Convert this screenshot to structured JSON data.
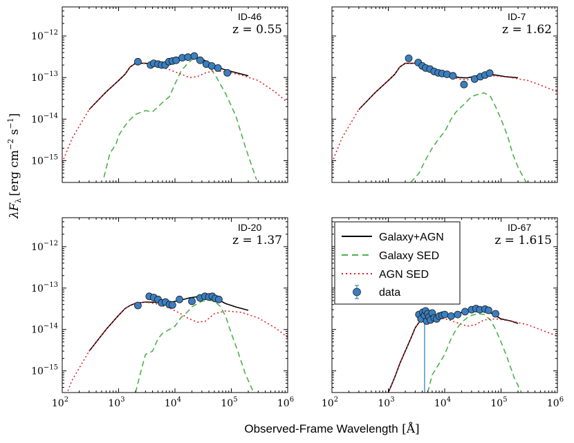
{
  "figure": {
    "xlabel_text": "Observed-Frame Wavelength",
    "xlabel_unit": "[Å]",
    "ylabel_text": "λF",
    "ylabel_sub": "λ",
    "ylabel_unit": "[erg cm",
    "ylabel_exp1": "−2",
    "ylabel_s": " s",
    "ylabel_exp2": "−1",
    "ylabel_close": "]",
    "x_tick_labels": [
      "10",
      "10",
      "10",
      "10",
      "10"
    ],
    "x_tick_exps": [
      "2",
      "3",
      "4",
      "5",
      "6"
    ],
    "y_tick_labels": [
      "10",
      "10",
      "10",
      "10"
    ],
    "y_tick_exps": [
      "−12",
      "−13",
      "−14",
      "−15"
    ]
  },
  "legend": {
    "position": "top-left of lower-right panel",
    "entries": [
      {
        "label": "Galaxy+AGN",
        "style": "solid",
        "color": "#000000"
      },
      {
        "label": "Galaxy SED",
        "style": "dashed",
        "color": "#4daf4a"
      },
      {
        "label": "AGN SED",
        "style": "dotted",
        "color": "#e41a1c"
      },
      {
        "label": "data",
        "style": "marker",
        "color": "#3a7fc1"
      }
    ]
  },
  "chart_data": [
    {
      "type": "line",
      "id": "ID-46",
      "z_label": "z = 0.55",
      "xscale": "log",
      "yscale": "log",
      "xlim": [
        100,
        1000000
      ],
      "ylim": [
        3e-16,
        5e-12
      ],
      "series": [
        {
          "name": "Galaxy+AGN",
          "x": [
            300,
            600,
            1000,
            1300,
            1600,
            2000,
            3000,
            5000,
            8000,
            12000,
            17000,
            22000,
            30000,
            45000,
            70000,
            100000,
            200000
          ],
          "y": [
            1.7e-14,
            4.5e-14,
            8.5e-14,
            1.2e-13,
            1.8e-13,
            2.2e-13,
            2.2e-13,
            2e-13,
            2.3e-13,
            2.6e-13,
            2.9e-13,
            3e-13,
            2.8e-13,
            2.1e-13,
            1.6e-13,
            1.4e-13,
            1.1e-13
          ]
        },
        {
          "name": "Galaxy SED",
          "x": [
            550,
            700,
            900,
            1000,
            1200,
            1500,
            2000,
            3000,
            4000,
            6000,
            8000,
            10000,
            13000,
            16000,
            20000,
            25000,
            30000,
            40000,
            55000,
            80000,
            120000,
            180000,
            280000
          ],
          "y": [
            4e-16,
            1.5e-15,
            2.5e-15,
            4e-15,
            6e-15,
            9e-15,
            1.3e-14,
            1.6e-14,
            1.5e-14,
            2.5e-14,
            3.5e-14,
            7e-14,
            1.5e-13,
            2e-13,
            2.7e-13,
            2.9e-13,
            2.7e-13,
            1.9e-13,
            1e-13,
            4e-14,
            1.2e-14,
            2e-15,
            3.5e-16
          ]
        },
        {
          "name": "AGN SED",
          "x": [
            100,
            150,
            300,
            600,
            1000,
            1300,
            1600,
            2000,
            3000,
            5000,
            8000,
            12000,
            18000,
            25000,
            35000,
            50000,
            80000,
            150000,
            300000,
            600000,
            1000000
          ],
          "y": [
            9e-16,
            3.5e-15,
            1.7e-14,
            4.5e-14,
            8.5e-14,
            1.2e-13,
            1.8e-13,
            2.2e-13,
            2.2e-13,
            1.9e-13,
            1.55e-13,
            1.25e-13,
            1e-13,
            1.05e-13,
            1.3e-13,
            1.45e-13,
            1.38e-13,
            1.15e-13,
            8.5e-14,
            4.5e-14,
            2.5e-14
          ]
        },
        {
          "name": "data",
          "x": [
            2200,
            3700,
            4200,
            5000,
            5800,
            6700,
            7800,
            9000,
            10500,
            13500,
            17000,
            22000,
            28000,
            36000,
            45000,
            58000,
            85000
          ],
          "y": [
            2.4e-13,
            2e-13,
            2.2e-13,
            2.1e-13,
            2e-13,
            2e-13,
            2.4e-13,
            2.5e-13,
            2.6e-13,
            3e-13,
            3.1e-13,
            3.3e-13,
            2.6e-13,
            2.1e-13,
            1.9e-13,
            1.7e-13,
            1.3e-13
          ]
        }
      ]
    },
    {
      "type": "line",
      "id": "ID-7",
      "z_label": "z = 1.62",
      "xscale": "log",
      "yscale": "log",
      "xlim": [
        100,
        1000000
      ],
      "ylim": [
        3e-16,
        5e-12
      ],
      "series": [
        {
          "name": "Galaxy+AGN",
          "x": [
            300,
            600,
            1000,
            1300,
            1600,
            2000,
            3000,
            5000,
            8000,
            12000,
            18000,
            25000,
            35000,
            50000,
            80000,
            120000,
            200000
          ],
          "y": [
            1.7e-14,
            4.5e-14,
            8.5e-14,
            1.2e-13,
            1.8e-13,
            2.2e-13,
            2.2e-13,
            1.7e-13,
            1.4e-13,
            1.15e-13,
            1e-13,
            9.8e-14,
            1.07e-13,
            1.25e-13,
            1.15e-13,
            1.05e-13,
            9.9e-14
          ]
        },
        {
          "name": "Galaxy SED",
          "x": [
            2500,
            3500,
            4500,
            6000,
            8000,
            10000,
            13000,
            16000,
            20000,
            25000,
            30000,
            40000,
            50000,
            65000,
            80000,
            100000,
            130000,
            160000,
            200000,
            280000
          ],
          "y": [
            3e-16,
            5e-16,
            1e-15,
            2e-15,
            3.5e-15,
            5e-15,
            1e-14,
            1.5e-14,
            2e-14,
            2.7e-14,
            3.5e-14,
            4e-14,
            4.3e-14,
            3.5e-14,
            2e-14,
            1e-14,
            4e-15,
            1.5e-15,
            7e-16,
            3e-16
          ]
        },
        {
          "name": "AGN SED",
          "x": [
            100,
            150,
            300,
            600,
            1000,
            1300,
            1600,
            2000,
            3000,
            5000,
            8000,
            12000,
            18000,
            25000,
            35000,
            50000,
            80000,
            150000,
            300000,
            600000,
            1000000
          ],
          "y": [
            9e-16,
            3.5e-15,
            1.7e-14,
            4.5e-14,
            8.5e-14,
            1.2e-13,
            1.8e-13,
            2.2e-13,
            2.2e-13,
            1.7e-13,
            1.35e-13,
            1.1e-13,
            9.2e-14,
            8.8e-14,
            9.6e-14,
            1.1e-13,
            1.1e-13,
            1e-13,
            8.5e-14,
            6e-14,
            4.5e-14
          ]
        },
        {
          "name": "data",
          "x": [
            2300,
            3400,
            4000,
            4600,
            5500,
            6500,
            7700,
            9000,
            11000,
            14000,
            22000,
            34000,
            43000,
            52000,
            63000
          ],
          "y": [
            2.9e-13,
            2.3e-13,
            1.9e-13,
            1.7e-13,
            1.6e-13,
            1.4e-13,
            1.3e-13,
            1.25e-13,
            1.2e-13,
            1.1e-13,
            6.8e-14,
            9.2e-14,
            1.05e-13,
            1.15e-13,
            1.28e-13
          ]
        }
      ]
    },
    {
      "type": "line",
      "id": "ID-20",
      "z_label": "z = 1.37",
      "xscale": "log",
      "yscale": "log",
      "xlim": [
        100,
        1000000
      ],
      "ylim": [
        3e-16,
        5e-12
      ],
      "series": [
        {
          "name": "Galaxy+AGN",
          "x": [
            300,
            600,
            1000,
            1300,
            1600,
            2000,
            3000,
            5000,
            8000,
            12000,
            18000,
            25000,
            35000,
            50000,
            80000,
            120000,
            200000
          ],
          "y": [
            3e-15,
            1e-14,
            2.2e-14,
            3.2e-14,
            3.8e-14,
            4.3e-14,
            4.6e-14,
            4.5e-14,
            4.5e-14,
            5e-14,
            5.8e-14,
            6.2e-14,
            6.3e-14,
            5.8e-14,
            4.2e-14,
            3.5e-14,
            2.9e-14
          ]
        },
        {
          "name": "Galaxy SED",
          "x": [
            2000,
            2500,
            3000,
            4000,
            5000,
            6000,
            8000,
            10000,
            13000,
            16000,
            20000,
            25000,
            30000,
            40000,
            50000,
            65000,
            80000,
            100000,
            130000,
            180000,
            250000
          ],
          "y": [
            3e-16,
            1e-15,
            2.5e-15,
            3e-15,
            6e-15,
            8e-15,
            1e-14,
            1.2e-14,
            2e-14,
            2.5e-14,
            3.5e-14,
            4.2e-14,
            4.8e-14,
            5.1e-14,
            4.8e-14,
            3.5e-14,
            2e-14,
            8e-15,
            3e-15,
            8e-16,
            3e-16
          ]
        },
        {
          "name": "AGN SED",
          "x": [
            100,
            150,
            300,
            600,
            1000,
            1300,
            1600,
            2000,
            3000,
            5000,
            8000,
            12000,
            18000,
            25000,
            35000,
            50000,
            80000,
            150000,
            300000,
            600000,
            1000000
          ],
          "y": [
            1.5e-16,
            6e-16,
            3e-15,
            1e-14,
            2.2e-14,
            3.2e-14,
            3.8e-14,
            4.3e-14,
            4.6e-14,
            4.1e-14,
            3.3e-14,
            2.5e-14,
            1.8e-14,
            1.5e-14,
            1.6e-14,
            2.4e-14,
            2.8e-14,
            2.6e-14,
            1.9e-14,
            1.1e-14,
            6.5e-15
          ]
        },
        {
          "name": "data",
          "x": [
            2200,
            3500,
            4200,
            5000,
            5800,
            6800,
            8000,
            9000,
            12000,
            20000,
            28000,
            34000,
            40000,
            46000,
            52000,
            60000
          ],
          "y": [
            3.8e-14,
            6.3e-14,
            5.9e-14,
            5.3e-14,
            4.4e-14,
            4.6e-14,
            4e-14,
            3.9e-14,
            5.3e-14,
            4.8e-14,
            5.8e-14,
            6.3e-14,
            6.1e-14,
            6.3e-14,
            5.6e-14,
            5.3e-14
          ]
        }
      ]
    },
    {
      "type": "line",
      "id": "ID-67",
      "z_label": "z = 1.615",
      "xscale": "log",
      "yscale": "log",
      "xlim": [
        100,
        1000000
      ],
      "ylim": [
        3e-16,
        5e-12
      ],
      "series": [
        {
          "name": "Galaxy+AGN",
          "x": [
            1000,
            1300,
            1600,
            2000,
            2500,
            3000,
            4000,
            5000,
            6000,
            8000,
            10000,
            13000,
            18000,
            25000,
            35000,
            50000,
            70000,
            100000,
            150000,
            200000
          ],
          "y": [
            3e-16,
            7e-16,
            1.5e-15,
            3e-15,
            6e-15,
            1.1e-14,
            1.9e-14,
            2.1e-14,
            2.1e-14,
            2.2e-14,
            2.2e-14,
            2.3e-14,
            2.5e-14,
            2.8e-14,
            3.1e-14,
            3e-14,
            2.4e-14,
            1.8e-14,
            1.6e-14,
            1.4e-14
          ]
        },
        {
          "name": "Galaxy SED",
          "x": [
            5000,
            6000,
            8000,
            10000,
            13000,
            16000,
            20000,
            25000,
            30000,
            40000,
            50000,
            65000,
            80000,
            100000,
            130000,
            170000,
            230000
          ],
          "y": [
            3e-16,
            8e-16,
            1.5e-15,
            2.5e-15,
            6e-15,
            1e-14,
            1.5e-14,
            1.9e-14,
            2.2e-14,
            2.4e-14,
            2.3e-14,
            1.7e-14,
            1e-14,
            5e-15,
            2e-15,
            7e-16,
            3e-16
          ]
        },
        {
          "name": "AGN SED",
          "x": [
            1000,
            1300,
            1600,
            2000,
            2500,
            3000,
            4000,
            5000,
            8000,
            12000,
            18000,
            25000,
            35000,
            50000,
            80000,
            150000,
            300000,
            600000,
            1000000
          ],
          "y": [
            3e-16,
            7e-16,
            1.5e-15,
            3e-15,
            6e-15,
            1.1e-14,
            1.9e-14,
            2.1e-14,
            1.9e-14,
            1.7e-14,
            1.4e-14,
            1.2e-14,
            1.3e-14,
            1.7e-14,
            1.8e-14,
            1.6e-14,
            1.3e-14,
            9e-15,
            7e-15
          ]
        },
        {
          "name": "data",
          "x": [
            3500,
            3800,
            4100,
            4400,
            4600,
            4800,
            5000,
            5300,
            5600,
            6000,
            6500,
            7200,
            8000,
            9000,
            10000,
            13000,
            17000,
            23000,
            30000,
            36000,
            42000,
            52000,
            60000,
            80000
          ],
          "y": [
            2.3e-14,
            1.8e-14,
            2.6e-14,
            2.2e-14,
            2.8e-14,
            1.6e-14,
            2.4e-14,
            2e-14,
            1.7e-14,
            2.5e-14,
            1.9e-14,
            1.8e-14,
            2.1e-14,
            2.2e-14,
            2.3e-14,
            2.1e-14,
            2.3e-14,
            2.7e-14,
            3e-14,
            3.2e-14,
            3e-14,
            3.1e-14,
            2.9e-14,
            2.4e-14
          ]
        },
        {
          "name": "errorbar",
          "x": [
            4400
          ],
          "y": [
            2.8e-14
          ],
          "y_low": [
            3e-16
          ]
        }
      ]
    }
  ]
}
